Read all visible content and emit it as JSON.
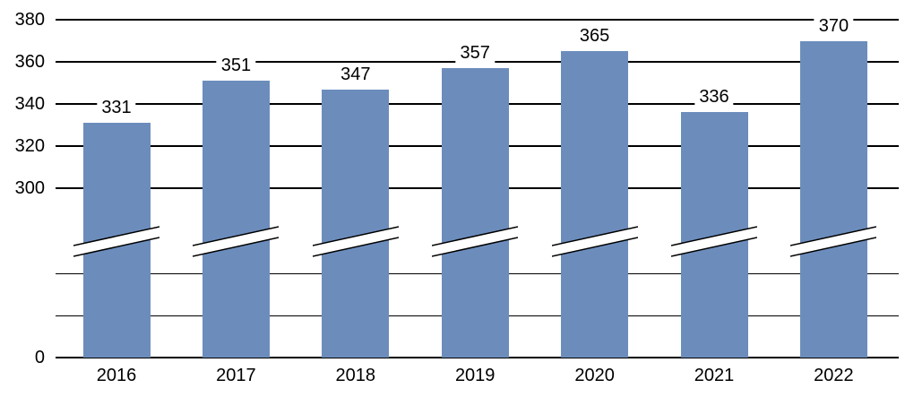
{
  "chart_data": {
    "type": "bar",
    "title": "",
    "xlabel": "",
    "ylabel": "",
    "categories": [
      "2016",
      "2017",
      "2018",
      "2019",
      "2020",
      "2021",
      "2022"
    ],
    "values": [
      331,
      351,
      347,
      357,
      365,
      336,
      370
    ],
    "data_labels": [
      "331",
      "351",
      "347",
      "357",
      "365",
      "336",
      "370"
    ],
    "y_axis_tick_labels": [
      "380",
      "360",
      "340",
      "320",
      "300",
      "0"
    ],
    "y_axis_tick_values": [
      380,
      360,
      340,
      320,
      300,
      0
    ],
    "axis_break": true,
    "axis_break_note": "y-axis broken between 0 and 300; diagonal slash marks drawn through each bar",
    "ylim_upper_section": [
      300,
      380
    ],
    "grid": true,
    "legend": false,
    "colors": {
      "bar_fill": "#6C8DBC",
      "gridline": "#000000",
      "text": "#000000",
      "background": "#FFFFFF",
      "break_band_fill": "#FFFFFF",
      "break_band_stroke": "#000000"
    }
  }
}
